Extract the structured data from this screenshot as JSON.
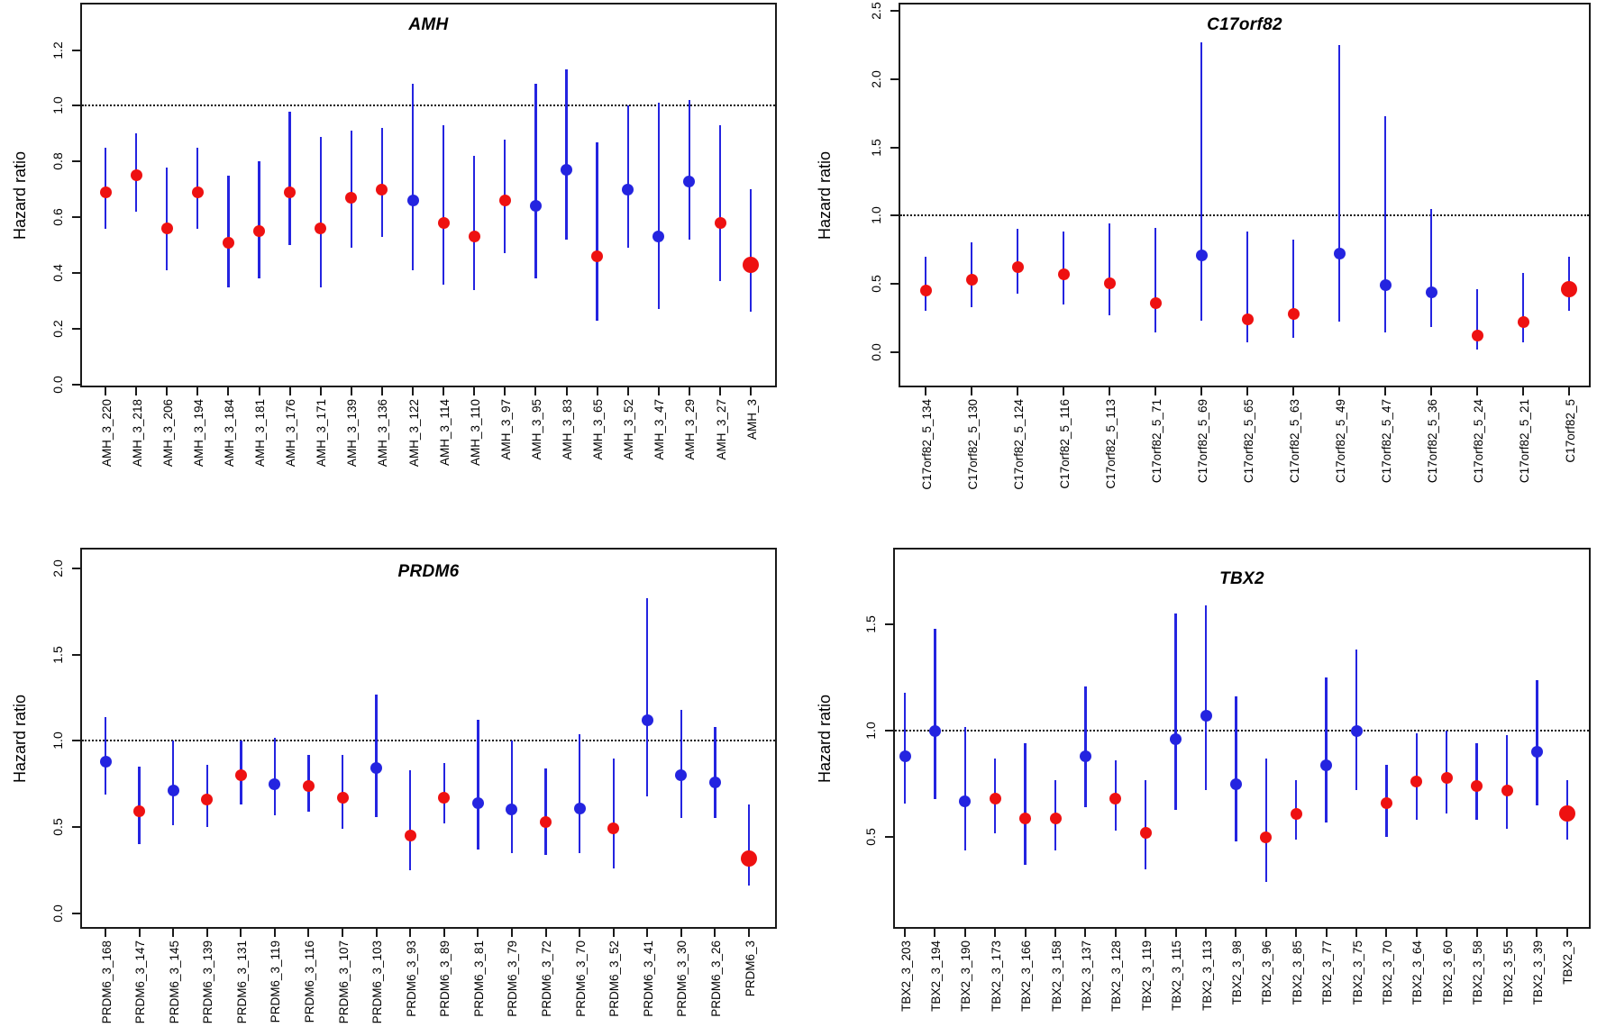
{
  "figure_type": "forest-plot-grid",
  "point_colors": {
    "red": "#ee1111",
    "blue": "#2424e0"
  },
  "reference_line_color": "#111111",
  "chart_data": [
    {
      "type": "scatter",
      "title": "AMH",
      "ylabel": "Hazard ratio",
      "ref_line": 1.0,
      "ylim": [
        -0.01,
        1.37
      ],
      "yticks": [
        "0.0",
        "0.2",
        "0.4",
        "0.6",
        "0.8",
        "1.0",
        "1.2"
      ],
      "grid": false,
      "legend": null,
      "points": [
        {
          "label": "AMH_3_220",
          "hr": 0.69,
          "ci_low": 0.56,
          "ci_high": 0.85,
          "color": "red",
          "size": "normal"
        },
        {
          "label": "AMH_3_218",
          "hr": 0.75,
          "ci_low": 0.62,
          "ci_high": 0.9,
          "color": "red",
          "size": "normal"
        },
        {
          "label": "AMH_3_206",
          "hr": 0.56,
          "ci_low": 0.41,
          "ci_high": 0.78,
          "color": "red",
          "size": "normal"
        },
        {
          "label": "AMH_3_194",
          "hr": 0.69,
          "ci_low": 0.56,
          "ci_high": 0.85,
          "color": "red",
          "size": "normal"
        },
        {
          "label": "AMH_3_184",
          "hr": 0.51,
          "ci_low": 0.35,
          "ci_high": 0.75,
          "color": "red",
          "size": "normal"
        },
        {
          "label": "AMH_3_181",
          "hr": 0.55,
          "ci_low": 0.38,
          "ci_high": 0.8,
          "color": "red",
          "size": "normal"
        },
        {
          "label": "AMH_3_176",
          "hr": 0.69,
          "ci_low": 0.5,
          "ci_high": 0.98,
          "color": "red",
          "size": "normal"
        },
        {
          "label": "AMH_3_171",
          "hr": 0.56,
          "ci_low": 0.35,
          "ci_high": 0.89,
          "color": "red",
          "size": "normal"
        },
        {
          "label": "AMH_3_139",
          "hr": 0.67,
          "ci_low": 0.49,
          "ci_high": 0.91,
          "color": "red",
          "size": "normal"
        },
        {
          "label": "AMH_3_136",
          "hr": 0.7,
          "ci_low": 0.53,
          "ci_high": 0.92,
          "color": "red",
          "size": "normal"
        },
        {
          "label": "AMH_3_122",
          "hr": 0.66,
          "ci_low": 0.41,
          "ci_high": 1.08,
          "color": "blue",
          "size": "normal"
        },
        {
          "label": "AMH_3_114",
          "hr": 0.58,
          "ci_low": 0.36,
          "ci_high": 0.93,
          "color": "red",
          "size": "normal"
        },
        {
          "label": "AMH_3_110",
          "hr": 0.53,
          "ci_low": 0.34,
          "ci_high": 0.82,
          "color": "red",
          "size": "normal"
        },
        {
          "label": "AMH_3_97",
          "hr": 0.66,
          "ci_low": 0.47,
          "ci_high": 0.88,
          "color": "red",
          "size": "normal"
        },
        {
          "label": "AMH_3_95",
          "hr": 0.64,
          "ci_low": 0.38,
          "ci_high": 1.08,
          "color": "blue",
          "size": "normal"
        },
        {
          "label": "AMH_3_83",
          "hr": 0.77,
          "ci_low": 0.52,
          "ci_high": 1.13,
          "color": "blue",
          "size": "normal"
        },
        {
          "label": "AMH_3_65",
          "hr": 0.46,
          "ci_low": 0.23,
          "ci_high": 0.87,
          "color": "red",
          "size": "normal"
        },
        {
          "label": "AMH_3_52",
          "hr": 0.7,
          "ci_low": 0.49,
          "ci_high": 1.0,
          "color": "blue",
          "size": "normal"
        },
        {
          "label": "AMH_3_47",
          "hr": 0.53,
          "ci_low": 0.27,
          "ci_high": 1.01,
          "color": "blue",
          "size": "normal"
        },
        {
          "label": "AMH_3_29",
          "hr": 0.73,
          "ci_low": 0.52,
          "ci_high": 1.02,
          "color": "blue",
          "size": "normal"
        },
        {
          "label": "AMH_3_27",
          "hr": 0.58,
          "ci_low": 0.37,
          "ci_high": 0.93,
          "color": "red",
          "size": "normal"
        },
        {
          "label": "AMH_3",
          "hr": 0.43,
          "ci_low": 0.26,
          "ci_high": 0.7,
          "color": "red",
          "size": "large"
        }
      ]
    },
    {
      "type": "scatter",
      "title": "C17orf82",
      "ylabel": "Hazard ratio",
      "ref_line": 1.0,
      "ylim": [
        -0.26,
        2.56
      ],
      "yticks": [
        "0.0",
        "0.5",
        "1.0",
        "1.5",
        "2.0",
        "2.5"
      ],
      "grid": false,
      "legend": null,
      "points": [
        {
          "label": "C17orf82_5_134",
          "hr": 0.45,
          "ci_low": 0.3,
          "ci_high": 0.7,
          "color": "red",
          "size": "normal"
        },
        {
          "label": "C17orf82_5_130",
          "hr": 0.53,
          "ci_low": 0.33,
          "ci_high": 0.8,
          "color": "red",
          "size": "normal"
        },
        {
          "label": "C17orf82_5_124",
          "hr": 0.62,
          "ci_low": 0.43,
          "ci_high": 0.9,
          "color": "red",
          "size": "normal"
        },
        {
          "label": "C17orf82_5_116",
          "hr": 0.57,
          "ci_low": 0.35,
          "ci_high": 0.88,
          "color": "red",
          "size": "normal"
        },
        {
          "label": "C17orf82_5_113",
          "hr": 0.5,
          "ci_low": 0.27,
          "ci_high": 0.94,
          "color": "red",
          "size": "normal"
        },
        {
          "label": "C17orf82_5_71",
          "hr": 0.36,
          "ci_low": 0.14,
          "ci_high": 0.91,
          "color": "red",
          "size": "normal"
        },
        {
          "label": "C17orf82_5_69",
          "hr": 0.71,
          "ci_low": 0.23,
          "ci_high": 2.27,
          "color": "blue",
          "size": "normal"
        },
        {
          "label": "C17orf82_5_65",
          "hr": 0.24,
          "ci_low": 0.07,
          "ci_high": 0.88,
          "color": "red",
          "size": "normal"
        },
        {
          "label": "C17orf82_5_63",
          "hr": 0.28,
          "ci_low": 0.1,
          "ci_high": 0.82,
          "color": "red",
          "size": "normal"
        },
        {
          "label": "C17orf82_5_49",
          "hr": 0.72,
          "ci_low": 0.22,
          "ci_high": 2.25,
          "color": "blue",
          "size": "normal"
        },
        {
          "label": "C17orf82_5_47",
          "hr": 0.49,
          "ci_low": 0.14,
          "ci_high": 1.73,
          "color": "blue",
          "size": "normal"
        },
        {
          "label": "C17orf82_5_36",
          "hr": 0.44,
          "ci_low": 0.18,
          "ci_high": 1.05,
          "color": "blue",
          "size": "normal"
        },
        {
          "label": "C17orf82_5_24",
          "hr": 0.12,
          "ci_low": 0.02,
          "ci_high": 0.46,
          "color": "red",
          "size": "normal"
        },
        {
          "label": "C17orf82_5_21",
          "hr": 0.22,
          "ci_low": 0.07,
          "ci_high": 0.58,
          "color": "red",
          "size": "normal"
        },
        {
          "label": "C17orf82_5",
          "hr": 0.46,
          "ci_low": 0.3,
          "ci_high": 0.7,
          "color": "red",
          "size": "large"
        }
      ]
    },
    {
      "type": "scatter",
      "title": "PRDM6",
      "ylabel": "Hazard ratio",
      "ref_line": 1.0,
      "ylim": [
        -0.09,
        2.12
      ],
      "yticks": [
        "0.0",
        "0.5",
        "1.0",
        "1.5",
        "2.0"
      ],
      "grid": false,
      "legend": null,
      "points": [
        {
          "label": "PRDM6_3_168",
          "hr": 0.88,
          "ci_low": 0.69,
          "ci_high": 1.14,
          "color": "blue",
          "size": "normal"
        },
        {
          "label": "PRDM6_3_147",
          "hr": 0.59,
          "ci_low": 0.4,
          "ci_high": 0.85,
          "color": "red",
          "size": "normal"
        },
        {
          "label": "PRDM6_3_145",
          "hr": 0.71,
          "ci_low": 0.51,
          "ci_high": 1.0,
          "color": "blue",
          "size": "normal"
        },
        {
          "label": "PRDM6_3_139",
          "hr": 0.66,
          "ci_low": 0.5,
          "ci_high": 0.86,
          "color": "red",
          "size": "normal"
        },
        {
          "label": "PRDM6_3_131",
          "hr": 0.8,
          "ci_low": 0.63,
          "ci_high": 1.0,
          "color": "red",
          "size": "normal"
        },
        {
          "label": "PRDM6_3_119",
          "hr": 0.75,
          "ci_low": 0.57,
          "ci_high": 1.02,
          "color": "blue",
          "size": "normal"
        },
        {
          "label": "PRDM6_3_116",
          "hr": 0.74,
          "ci_low": 0.59,
          "ci_high": 0.92,
          "color": "red",
          "size": "normal"
        },
        {
          "label": "PRDM6_3_107",
          "hr": 0.67,
          "ci_low": 0.49,
          "ci_high": 0.92,
          "color": "red",
          "size": "normal"
        },
        {
          "label": "PRDM6_3_103",
          "hr": 0.84,
          "ci_low": 0.56,
          "ci_high": 1.27,
          "color": "blue",
          "size": "normal"
        },
        {
          "label": "PRDM6_3_93",
          "hr": 0.45,
          "ci_low": 0.25,
          "ci_high": 0.83,
          "color": "red",
          "size": "normal"
        },
        {
          "label": "PRDM6_3_89",
          "hr": 0.67,
          "ci_low": 0.52,
          "ci_high": 0.87,
          "color": "red",
          "size": "normal"
        },
        {
          "label": "PRDM6_3_81",
          "hr": 0.64,
          "ci_low": 0.37,
          "ci_high": 1.12,
          "color": "blue",
          "size": "normal"
        },
        {
          "label": "PRDM6_3_79",
          "hr": 0.6,
          "ci_low": 0.35,
          "ci_high": 1.0,
          "color": "blue",
          "size": "normal"
        },
        {
          "label": "PRDM6_3_72",
          "hr": 0.53,
          "ci_low": 0.34,
          "ci_high": 0.84,
          "color": "red",
          "size": "normal"
        },
        {
          "label": "PRDM6_3_70",
          "hr": 0.61,
          "ci_low": 0.35,
          "ci_high": 1.04,
          "color": "blue",
          "size": "normal"
        },
        {
          "label": "PRDM6_3_52",
          "hr": 0.49,
          "ci_low": 0.26,
          "ci_high": 0.9,
          "color": "red",
          "size": "normal"
        },
        {
          "label": "PRDM6_3_41",
          "hr": 1.12,
          "ci_low": 0.68,
          "ci_high": 1.83,
          "color": "blue",
          "size": "normal"
        },
        {
          "label": "PRDM6_3_30",
          "hr": 0.8,
          "ci_low": 0.55,
          "ci_high": 1.18,
          "color": "blue",
          "size": "normal"
        },
        {
          "label": "PRDM6_3_26",
          "hr": 0.76,
          "ci_low": 0.55,
          "ci_high": 1.08,
          "color": "blue",
          "size": "normal"
        },
        {
          "label": "PRDM6_3",
          "hr": 0.32,
          "ci_low": 0.16,
          "ci_high": 0.63,
          "color": "red",
          "size": "large"
        }
      ]
    },
    {
      "type": "scatter",
      "title": "TBX2",
      "ylabel": "Hazard ratio",
      "ref_line": 1.0,
      "ylim": [
        0.07,
        1.86
      ],
      "yticks": [
        "0.5",
        "1.0",
        "1.5"
      ],
      "grid": false,
      "legend": null,
      "points": [
        {
          "label": "TBX2_3_203",
          "hr": 0.88,
          "ci_low": 0.66,
          "ci_high": 1.18,
          "color": "blue",
          "size": "normal"
        },
        {
          "label": "TBX2_3_194",
          "hr": 1.0,
          "ci_low": 0.68,
          "ci_high": 1.48,
          "color": "blue",
          "size": "normal"
        },
        {
          "label": "TBX2_3_190",
          "hr": 0.67,
          "ci_low": 0.44,
          "ci_high": 1.02,
          "color": "blue",
          "size": "normal"
        },
        {
          "label": "TBX2_3_173",
          "hr": 0.68,
          "ci_low": 0.52,
          "ci_high": 0.87,
          "color": "red",
          "size": "normal"
        },
        {
          "label": "TBX2_3_166",
          "hr": 0.59,
          "ci_low": 0.37,
          "ci_high": 0.94,
          "color": "red",
          "size": "normal"
        },
        {
          "label": "TBX2_3_158",
          "hr": 0.59,
          "ci_low": 0.44,
          "ci_high": 0.77,
          "color": "red",
          "size": "normal"
        },
        {
          "label": "TBX2_3_137",
          "hr": 0.88,
          "ci_low": 0.64,
          "ci_high": 1.21,
          "color": "blue",
          "size": "normal"
        },
        {
          "label": "TBX2_3_128",
          "hr": 0.68,
          "ci_low": 0.53,
          "ci_high": 0.86,
          "color": "red",
          "size": "normal"
        },
        {
          "label": "TBX2_3_119",
          "hr": 0.52,
          "ci_low": 0.35,
          "ci_high": 0.77,
          "color": "red",
          "size": "normal"
        },
        {
          "label": "TBX2_3_115",
          "hr": 0.96,
          "ci_low": 0.63,
          "ci_high": 1.55,
          "color": "blue",
          "size": "normal"
        },
        {
          "label": "TBX2_3_113",
          "hr": 1.07,
          "ci_low": 0.72,
          "ci_high": 1.59,
          "color": "blue",
          "size": "normal"
        },
        {
          "label": "TBX2_3_98",
          "hr": 0.75,
          "ci_low": 0.48,
          "ci_high": 1.16,
          "color": "blue",
          "size": "normal"
        },
        {
          "label": "TBX2_3_96",
          "hr": 0.5,
          "ci_low": 0.29,
          "ci_high": 0.87,
          "color": "red",
          "size": "normal"
        },
        {
          "label": "TBX2_3_85",
          "hr": 0.61,
          "ci_low": 0.49,
          "ci_high": 0.77,
          "color": "red",
          "size": "normal"
        },
        {
          "label": "TBX2_3_77",
          "hr": 0.84,
          "ci_low": 0.57,
          "ci_high": 1.25,
          "color": "blue",
          "size": "normal"
        },
        {
          "label": "TBX2_3_75",
          "hr": 1.0,
          "ci_low": 0.72,
          "ci_high": 1.38,
          "color": "blue",
          "size": "normal"
        },
        {
          "label": "TBX2_3_70",
          "hr": 0.66,
          "ci_low": 0.5,
          "ci_high": 0.84,
          "color": "red",
          "size": "normal"
        },
        {
          "label": "TBX2_3_64",
          "hr": 0.76,
          "ci_low": 0.58,
          "ci_high": 0.99,
          "color": "red",
          "size": "normal"
        },
        {
          "label": "TBX2_3_60",
          "hr": 0.78,
          "ci_low": 0.61,
          "ci_high": 1.0,
          "color": "red",
          "size": "normal"
        },
        {
          "label": "TBX2_3_58",
          "hr": 0.74,
          "ci_low": 0.58,
          "ci_high": 0.94,
          "color": "red",
          "size": "normal"
        },
        {
          "label": "TBX2_3_55",
          "hr": 0.72,
          "ci_low": 0.54,
          "ci_high": 0.98,
          "color": "red",
          "size": "normal"
        },
        {
          "label": "TBX2_3_39",
          "hr": 0.9,
          "ci_low": 0.65,
          "ci_high": 1.24,
          "color": "blue",
          "size": "normal"
        },
        {
          "label": "TBX2_3",
          "hr": 0.61,
          "ci_low": 0.49,
          "ci_high": 0.77,
          "color": "red",
          "size": "large"
        }
      ]
    }
  ]
}
